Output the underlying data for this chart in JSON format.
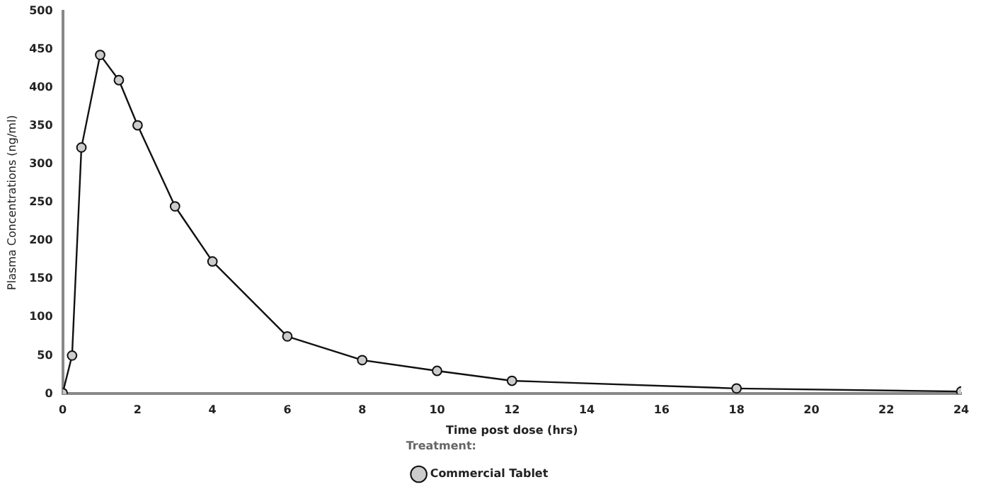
{
  "chart_data": {
    "type": "line",
    "xlabel": "Time post dose (hrs)",
    "ylabel": "Plasma Concentrations (ng/ml)",
    "legend_title": "Treatment:",
    "x": [
      0,
      0.25,
      0.5,
      1,
      1.5,
      2,
      3,
      4,
      6,
      8,
      10,
      12,
      18,
      24
    ],
    "series": [
      {
        "name": "Commercial Tablet",
        "color": "#111111",
        "values": [
          1,
          50,
          322,
          443,
          410,
          351,
          245,
          173,
          75,
          44,
          30,
          17,
          7,
          3
        ]
      }
    ],
    "xlim": [
      0,
      24
    ],
    "xticks": [
      0,
      2,
      4,
      6,
      8,
      10,
      12,
      14,
      16,
      18,
      20,
      22,
      24
    ],
    "ylim": [
      0,
      500
    ],
    "yticks": [
      0,
      50,
      100,
      150,
      200,
      250,
      300,
      350,
      400,
      450,
      500
    ],
    "grid": false,
    "legend": "bottom",
    "marker": "circle",
    "line_style": "solid"
  }
}
